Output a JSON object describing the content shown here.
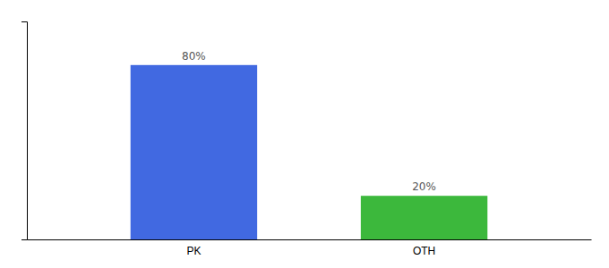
{
  "chart_data": {
    "type": "bar",
    "categories": [
      "PK",
      "OTH"
    ],
    "values": [
      80,
      20
    ],
    "value_labels": [
      "80%",
      "20%"
    ],
    "colors": [
      "#4169E1",
      "#3CB83C"
    ],
    "ylim": [
      0,
      100
    ],
    "data_labels": true,
    "tick_labels": "x",
    "grid": false
  }
}
